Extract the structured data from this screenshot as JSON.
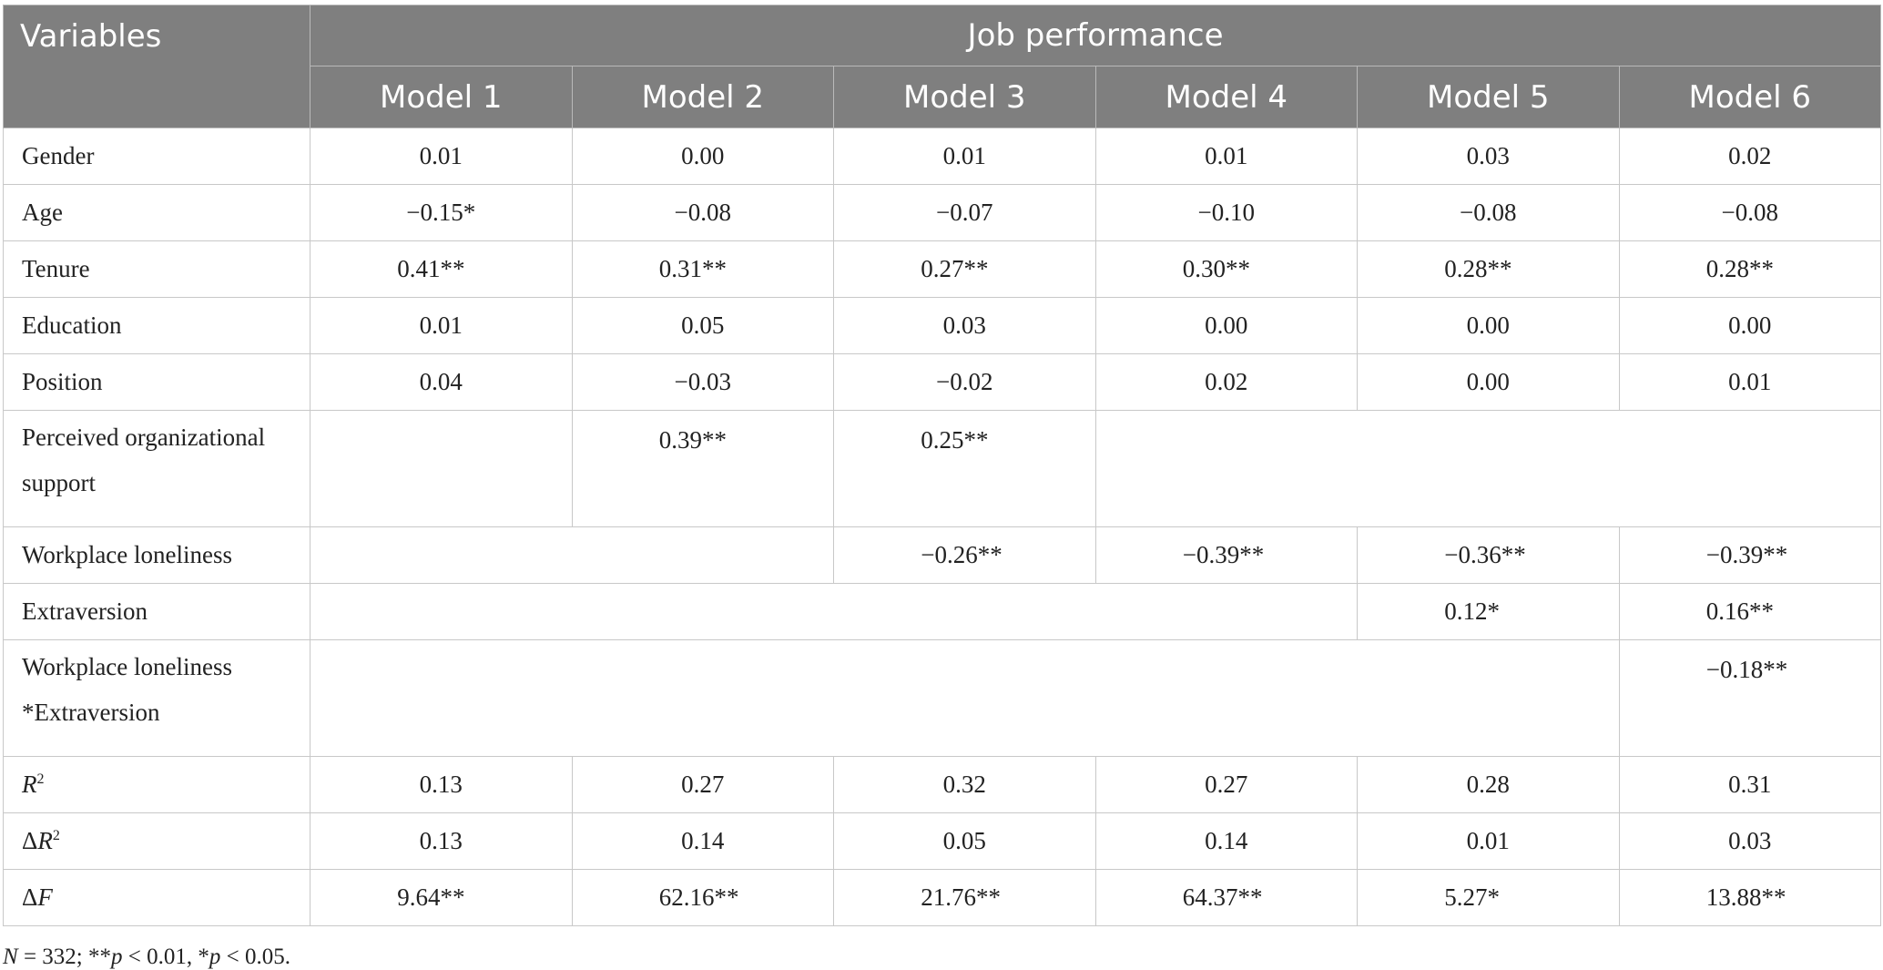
{
  "header": {
    "variables_label": "Variables",
    "group_label": "Job performance",
    "models": [
      "Model 1",
      "Model 2",
      "Model 3",
      "Model 4",
      "Model 5",
      "Model 6"
    ]
  },
  "rows": {
    "gender": {
      "label": "Gender",
      "values": [
        "0.01",
        "0.00",
        "0.01",
        "0.01",
        "0.03",
        "0.02"
      ]
    },
    "age": {
      "label": "Age",
      "values": [
        "−0.15*",
        "−0.08",
        "−0.07",
        "−0.10",
        "−0.08",
        "−0.08"
      ]
    },
    "tenure": {
      "label": "Tenure",
      "values": [
        "0.41**",
        "0.31**",
        "0.27**",
        "0.30**",
        "0.28**",
        "0.28**"
      ]
    },
    "education": {
      "label": "Education",
      "values": [
        "0.01",
        "0.05",
        "0.03",
        "0.00",
        "0.00",
        "0.00"
      ]
    },
    "position": {
      "label": "Position",
      "values": [
        "0.04",
        "−0.03",
        "−0.02",
        "0.02",
        "0.00",
        "0.01"
      ]
    },
    "pos": {
      "label_line1": "Perceived organizational",
      "label_line2": "support",
      "model2": "0.39**",
      "model3": "0.25**"
    },
    "loneliness": {
      "label": "Workplace loneliness",
      "model3": "−0.26**",
      "model4": "−0.39**",
      "model5": "−0.36**",
      "model6": "−0.39**"
    },
    "extraversion": {
      "label": "Extraversion",
      "model5": "0.12*",
      "model6": "0.16**"
    },
    "interaction": {
      "label_line1": "Workplace loneliness",
      "label_line2": "*Extraversion",
      "model6": "−0.18**"
    },
    "r2": {
      "label_var": "R",
      "label_sup": "2",
      "values": [
        "0.13",
        "0.27",
        "0.32",
        "0.27",
        "0.28",
        "0.31"
      ]
    },
    "delta_r2": {
      "label_delta": "Δ",
      "label_var": "R",
      "label_sup": "2",
      "values": [
        "0.13",
        "0.14",
        "0.05",
        "0.14",
        "0.01",
        "0.03"
      ]
    },
    "delta_f": {
      "label_delta": "Δ",
      "label_var": "F",
      "values": [
        "9.64**",
        "62.16**",
        "21.76**",
        "64.37**",
        "5.27*",
        "13.88**"
      ]
    }
  },
  "note": {
    "n_var": "N",
    "n_text": " = 332; **",
    "p1_var": "p",
    "p1_text": " < 0.01, *",
    "p2_var": "p",
    "p2_text": " < 0.05."
  }
}
